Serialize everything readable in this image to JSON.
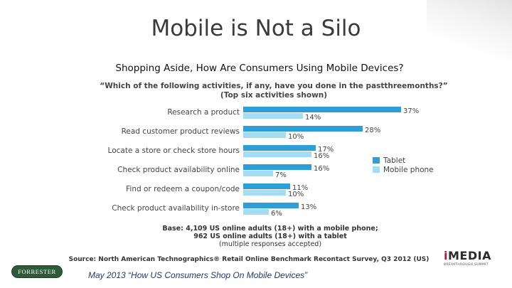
{
  "slide": {
    "title": "Mobile is Not a Silo",
    "footer": "May 2013 “How US Consumers Shop On Mobile Devices”",
    "logos": {
      "forrester": "FORRESTER",
      "imedia_prefix": "i",
      "imedia_rest": "MEDIA",
      "imedia_tagline": "BREAKTHROUGH SUMMIT"
    }
  },
  "chart_data": {
    "type": "bar",
    "orientation": "horizontal",
    "title": "Shopping Aside, How Are Consumers Using Mobile Devices?",
    "subtitle_line1": "“Which of the following activities, if any, have you done in the pastthreemonths?”",
    "subtitle_line2": "(Top six activities shown)",
    "categories": [
      "Research a product",
      "Read customer product reviews",
      "Locate a store or check store hours",
      "Check product availability online",
      "Find or redeem a coupon/code",
      "Check product availability in-store"
    ],
    "series": [
      {
        "name": "Tablet",
        "color": "#2e9fd6",
        "values": [
          37,
          28,
          17,
          16,
          11,
          13
        ]
      },
      {
        "name": "Mobile phone",
        "color": "#a4dcf3",
        "values": [
          14,
          10,
          16,
          7,
          10,
          6
        ]
      }
    ],
    "value_suffix": "%",
    "xlim": [
      0,
      37
    ],
    "legend_position": "right",
    "grid": false,
    "base_note": {
      "line1": "Base: 4,109 US online adults (18+) with a mobile phone;",
      "line2": "962 US online adults (18+) with a tablet",
      "line3": "(multiple responses accepted)"
    },
    "source": "Source: North American Technographics® Retail Online Benchmark Recontact Survey, Q3 2012 (US)"
  }
}
